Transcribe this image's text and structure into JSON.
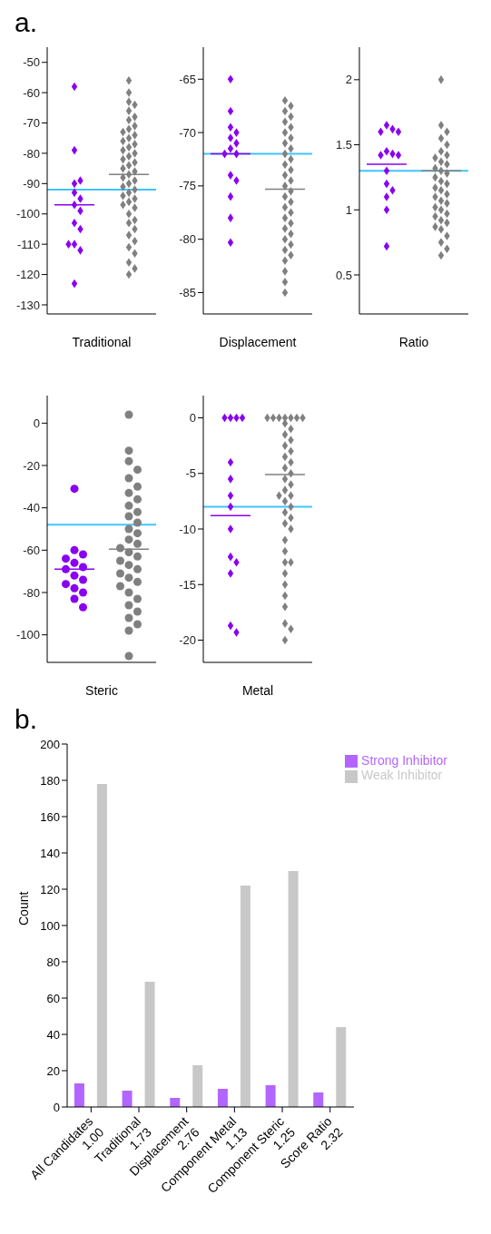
{
  "chart_data": [
    {
      "type": "box",
      "title": "a.",
      "xlabel": "Traditional",
      "marker": "diamond",
      "tick_labels": "y",
      "categories": [
        null,
        null
      ],
      "ylim": [
        -133,
        -45
      ],
      "yticks": [
        -130,
        -120,
        -110,
        -100,
        -90,
        -80,
        -70,
        -60,
        -50
      ],
      "ref_lines": [
        {
          "axis": "y",
          "value": -92,
          "color": "#40c4ff"
        }
      ],
      "series": [
        {
          "color": "#8a00f0",
          "boxes": [
            {
              "low": -97,
              "q1": -97,
              "median": -97,
              "q3": -97,
              "high": -97,
              "outliers": [
                -58,
                -79,
                -90,
                -89,
                -93,
                -95,
                -97,
                -99,
                -103,
                -105,
                -110,
                -112,
                -110,
                -123
              ]
            },
            null
          ]
        },
        {
          "color": "#808080",
          "boxes": [
            null,
            {
              "low": -87,
              "q1": -87,
              "median": -87,
              "q3": -87,
              "high": -87,
              "outliers": [
                -56,
                -60,
                -63,
                -64,
                -66,
                -68,
                -69,
                -71,
                -72,
                -73,
                -74,
                -75,
                -76,
                -77,
                -78,
                -79,
                -80,
                -81,
                -82,
                -83,
                -84,
                -85,
                -86,
                -87,
                -88,
                -89,
                -90,
                -91,
                -92,
                -93,
                -94,
                -95,
                -96,
                -97,
                -98,
                -100,
                -102,
                -103,
                -105,
                -107,
                -109,
                -111,
                -113,
                -116,
                -118,
                -120
              ]
            }
          ]
        }
      ]
    },
    {
      "type": "box",
      "xlabel": "Displacement",
      "marker": "diamond",
      "tick_labels": "y",
      "categories": [
        null,
        null
      ],
      "ylim": [
        -87,
        -62
      ],
      "yticks": [
        -85,
        -80,
        -75,
        -70,
        -65
      ],
      "ref_lines": [
        {
          "axis": "y",
          "value": -72,
          "color": "#40c4ff"
        }
      ],
      "series": [
        {
          "color": "#8a00f0",
          "boxes": [
            {
              "low": -72,
              "q1": -72,
              "median": -72,
              "q3": -72,
              "high": -72,
              "outliers": [
                -65,
                -68,
                -69.5,
                -70,
                -70.5,
                -71,
                -71.5,
                -72,
                -72,
                -74,
                -74.5,
                -76,
                -78,
                -80.3
              ]
            },
            null
          ]
        },
        {
          "color": "#808080",
          "boxes": [
            null,
            {
              "low": -75.3,
              "q1": -75.3,
              "median": -75.3,
              "q3": -75.3,
              "high": -75.3,
              "outliers": [
                -67,
                -67.5,
                -68,
                -68.5,
                -69,
                -69.5,
                -70,
                -70.5,
                -71,
                -71.5,
                -72,
                -72.5,
                -73,
                -73.5,
                -74,
                -74.5,
                -75,
                -75.5,
                -76,
                -76.5,
                -77,
                -77.5,
                -78,
                -78.5,
                -79,
                -79.5,
                -80,
                -80.5,
                -81,
                -81.5,
                -82,
                -83,
                -84,
                -85
              ]
            }
          ]
        }
      ]
    },
    {
      "type": "box",
      "xlabel": "Ratio",
      "marker": "diamond",
      "tick_labels": "y",
      "categories": [
        null,
        null
      ],
      "ylim": [
        0.2,
        2.25
      ],
      "yticks": [
        0.5,
        1.0,
        1.5,
        2.0
      ],
      "ref_lines": [
        {
          "axis": "y",
          "value": 1.3,
          "color": "#40c4ff"
        }
      ],
      "series": [
        {
          "color": "#8a00f0",
          "boxes": [
            {
              "low": 1.35,
              "q1": 1.35,
              "median": 1.35,
              "q3": 1.35,
              "high": 1.35,
              "outliers": [
                1.65,
                1.62,
                1.6,
                1.6,
                1.45,
                1.43,
                1.42,
                1.42,
                1.3,
                1.2,
                1.15,
                1.1,
                1.0,
                0.72
              ]
            },
            null
          ]
        },
        {
          "color": "#808080",
          "boxes": [
            null,
            {
              "low": 1.3,
              "q1": 1.3,
              "median": 1.3,
              "q3": 1.3,
              "high": 1.3,
              "outliers": [
                2.0,
                1.65,
                1.6,
                1.55,
                1.5,
                1.45,
                1.42,
                1.4,
                1.37,
                1.35,
                1.32,
                1.3,
                1.28,
                1.25,
                1.22,
                1.2,
                1.17,
                1.15,
                1.12,
                1.1,
                1.07,
                1.05,
                1.02,
                1.0,
                0.97,
                0.95,
                0.92,
                0.9,
                0.87,
                0.85,
                0.8,
                0.75,
                0.7,
                0.65
              ]
            }
          ]
        }
      ]
    },
    {
      "type": "box",
      "xlabel": "Steric",
      "marker": "circle",
      "tick_labels": "y",
      "categories": [
        null,
        null
      ],
      "ylim": [
        -113,
        13
      ],
      "yticks": [
        -100,
        -80,
        -60,
        -40,
        -20,
        0
      ],
      "ref_lines": [
        {
          "axis": "y",
          "value": -48,
          "color": "#40c4ff"
        }
      ],
      "series": [
        {
          "color": "#8a00f0",
          "boxes": [
            {
              "low": -69,
              "q1": -69,
              "median": -69,
              "q3": -69,
              "high": -69,
              "outliers": [
                -31,
                -60,
                -62,
                -64,
                -66,
                -68,
                -69,
                -72,
                -74,
                -76,
                -78,
                -80,
                -83,
                -87
              ]
            },
            null
          ]
        },
        {
          "color": "#808080",
          "boxes": [
            null,
            {
              "low": -59.5,
              "q1": -59.5,
              "median": -59.5,
              "q3": -59.5,
              "high": -59.5,
              "outliers": [
                4,
                -13,
                -18,
                -22,
                -26,
                -30,
                -33,
                -36,
                -39,
                -42,
                -44,
                -47,
                -50,
                -52,
                -55,
                -57,
                -59,
                -61,
                -63,
                -65,
                -67,
                -69,
                -71,
                -73,
                -75,
                -77,
                -80,
                -83,
                -86,
                -89,
                -92,
                -95,
                -98,
                -110
              ]
            }
          ]
        }
      ]
    },
    {
      "type": "box",
      "xlabel": "Metal",
      "marker": "diamond",
      "tick_labels": "y",
      "categories": [
        null,
        null
      ],
      "ylim": [
        -22,
        2
      ],
      "yticks": [
        -20,
        -15,
        -10,
        -5,
        0
      ],
      "ref_lines": [
        {
          "axis": "y",
          "value": -8,
          "color": "#40c4ff"
        }
      ],
      "series": [
        {
          "color": "#8a00f0",
          "boxes": [
            {
              "low": -8.8,
              "q1": -8.8,
              "median": -8.8,
              "q3": -8.8,
              "high": -8.8,
              "outliers": [
                0,
                0,
                0,
                0,
                -4,
                -5.5,
                -7,
                -8,
                -10,
                -12.5,
                -13,
                -14,
                -18.7,
                -19.3
              ]
            },
            null
          ]
        },
        {
          "color": "#808080",
          "boxes": [
            null,
            {
              "low": -5.1,
              "q1": -5.1,
              "median": -5.1,
              "q3": -5.1,
              "high": -5.1,
              "outliers": [
                0,
                0,
                0,
                0,
                0,
                0,
                0,
                -0.5,
                -1,
                -1.5,
                -2,
                -2.5,
                -3,
                -3.5,
                -4,
                -4.5,
                -5,
                -5.5,
                -6,
                -6.5,
                -7,
                -7,
                -7.5,
                -8,
                -8.5,
                -9,
                -9.5,
                -10,
                -11,
                -12,
                -13,
                -13,
                -14,
                -15,
                -16,
                -17,
                -18.5,
                -19,
                -20
              ]
            }
          ]
        }
      ]
    },
    {
      "type": "bar",
      "title": "b.",
      "ylabel": "Count",
      "legend": "top right",
      "ylim": [
        0,
        200
      ],
      "yticks": [
        0,
        20,
        40,
        60,
        80,
        100,
        120,
        140,
        160,
        180,
        200
      ],
      "categories": [
        "All Candidates\n1.00",
        "Traditional\n1.73",
        "Displacement\n2.76",
        "Component Metal\n1.13",
        "Component Steric\n1.25",
        "Score Ratio\n2.32"
      ],
      "series": [
        {
          "name": "Strong Inhibitor",
          "color": "#b266ff",
          "values": [
            13,
            9,
            5,
            10,
            12,
            8
          ]
        },
        {
          "name": "Weak Inhibitor",
          "color": "#c8c8c8",
          "values": [
            178,
            69,
            23,
            122,
            130,
            44
          ]
        }
      ]
    }
  ]
}
